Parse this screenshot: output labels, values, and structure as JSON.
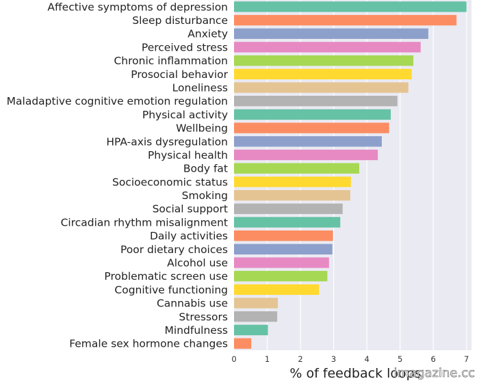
{
  "chart_data": {
    "type": "bar",
    "orientation": "horizontal",
    "categories": [
      "Affective symptoms of depression",
      "Sleep disturbance",
      "Anxiety",
      "Perceived stress",
      "Chronic inflammation",
      "Prosocial behavior",
      "Loneliness",
      "Maladaptive cognitive emotion regulation",
      "Physical activity",
      "Wellbeing",
      "HPA-axis dysregulation",
      "Physical health",
      "Body fat",
      "Socioeconomic status",
      "Smoking",
      "Social support",
      "Circadian rhythm misalignment",
      "Daily activities",
      "Poor dietary choices",
      "Alcohol use",
      "Problematic screen use",
      "Cognitive functioning",
      "Cannabis use",
      "Stressors",
      "Mindfulness",
      "Female sex hormone changes"
    ],
    "values": [
      7.0,
      6.7,
      5.85,
      5.62,
      5.4,
      5.35,
      5.25,
      4.92,
      4.72,
      4.67,
      4.45,
      4.33,
      3.77,
      3.52,
      3.5,
      3.27,
      3.2,
      2.98,
      2.96,
      2.86,
      2.81,
      2.56,
      1.32,
      1.3,
      1.02,
      0.52
    ],
    "colors": [
      "#66c2a5",
      "#fc8d62",
      "#8da0cb",
      "#e78ac3",
      "#a6d854",
      "#ffd92f",
      "#e5c494",
      "#b3b3b3"
    ],
    "title": "",
    "xlabel": "% of feedback loops",
    "ylabel": "",
    "xlim": [
      0,
      7.15
    ],
    "xticks": [
      0,
      1,
      2,
      3,
      4,
      5,
      6,
      7
    ],
    "grid": "vertical",
    "background": "#eaeaf2"
  },
  "watermark": "imagazine.cc"
}
